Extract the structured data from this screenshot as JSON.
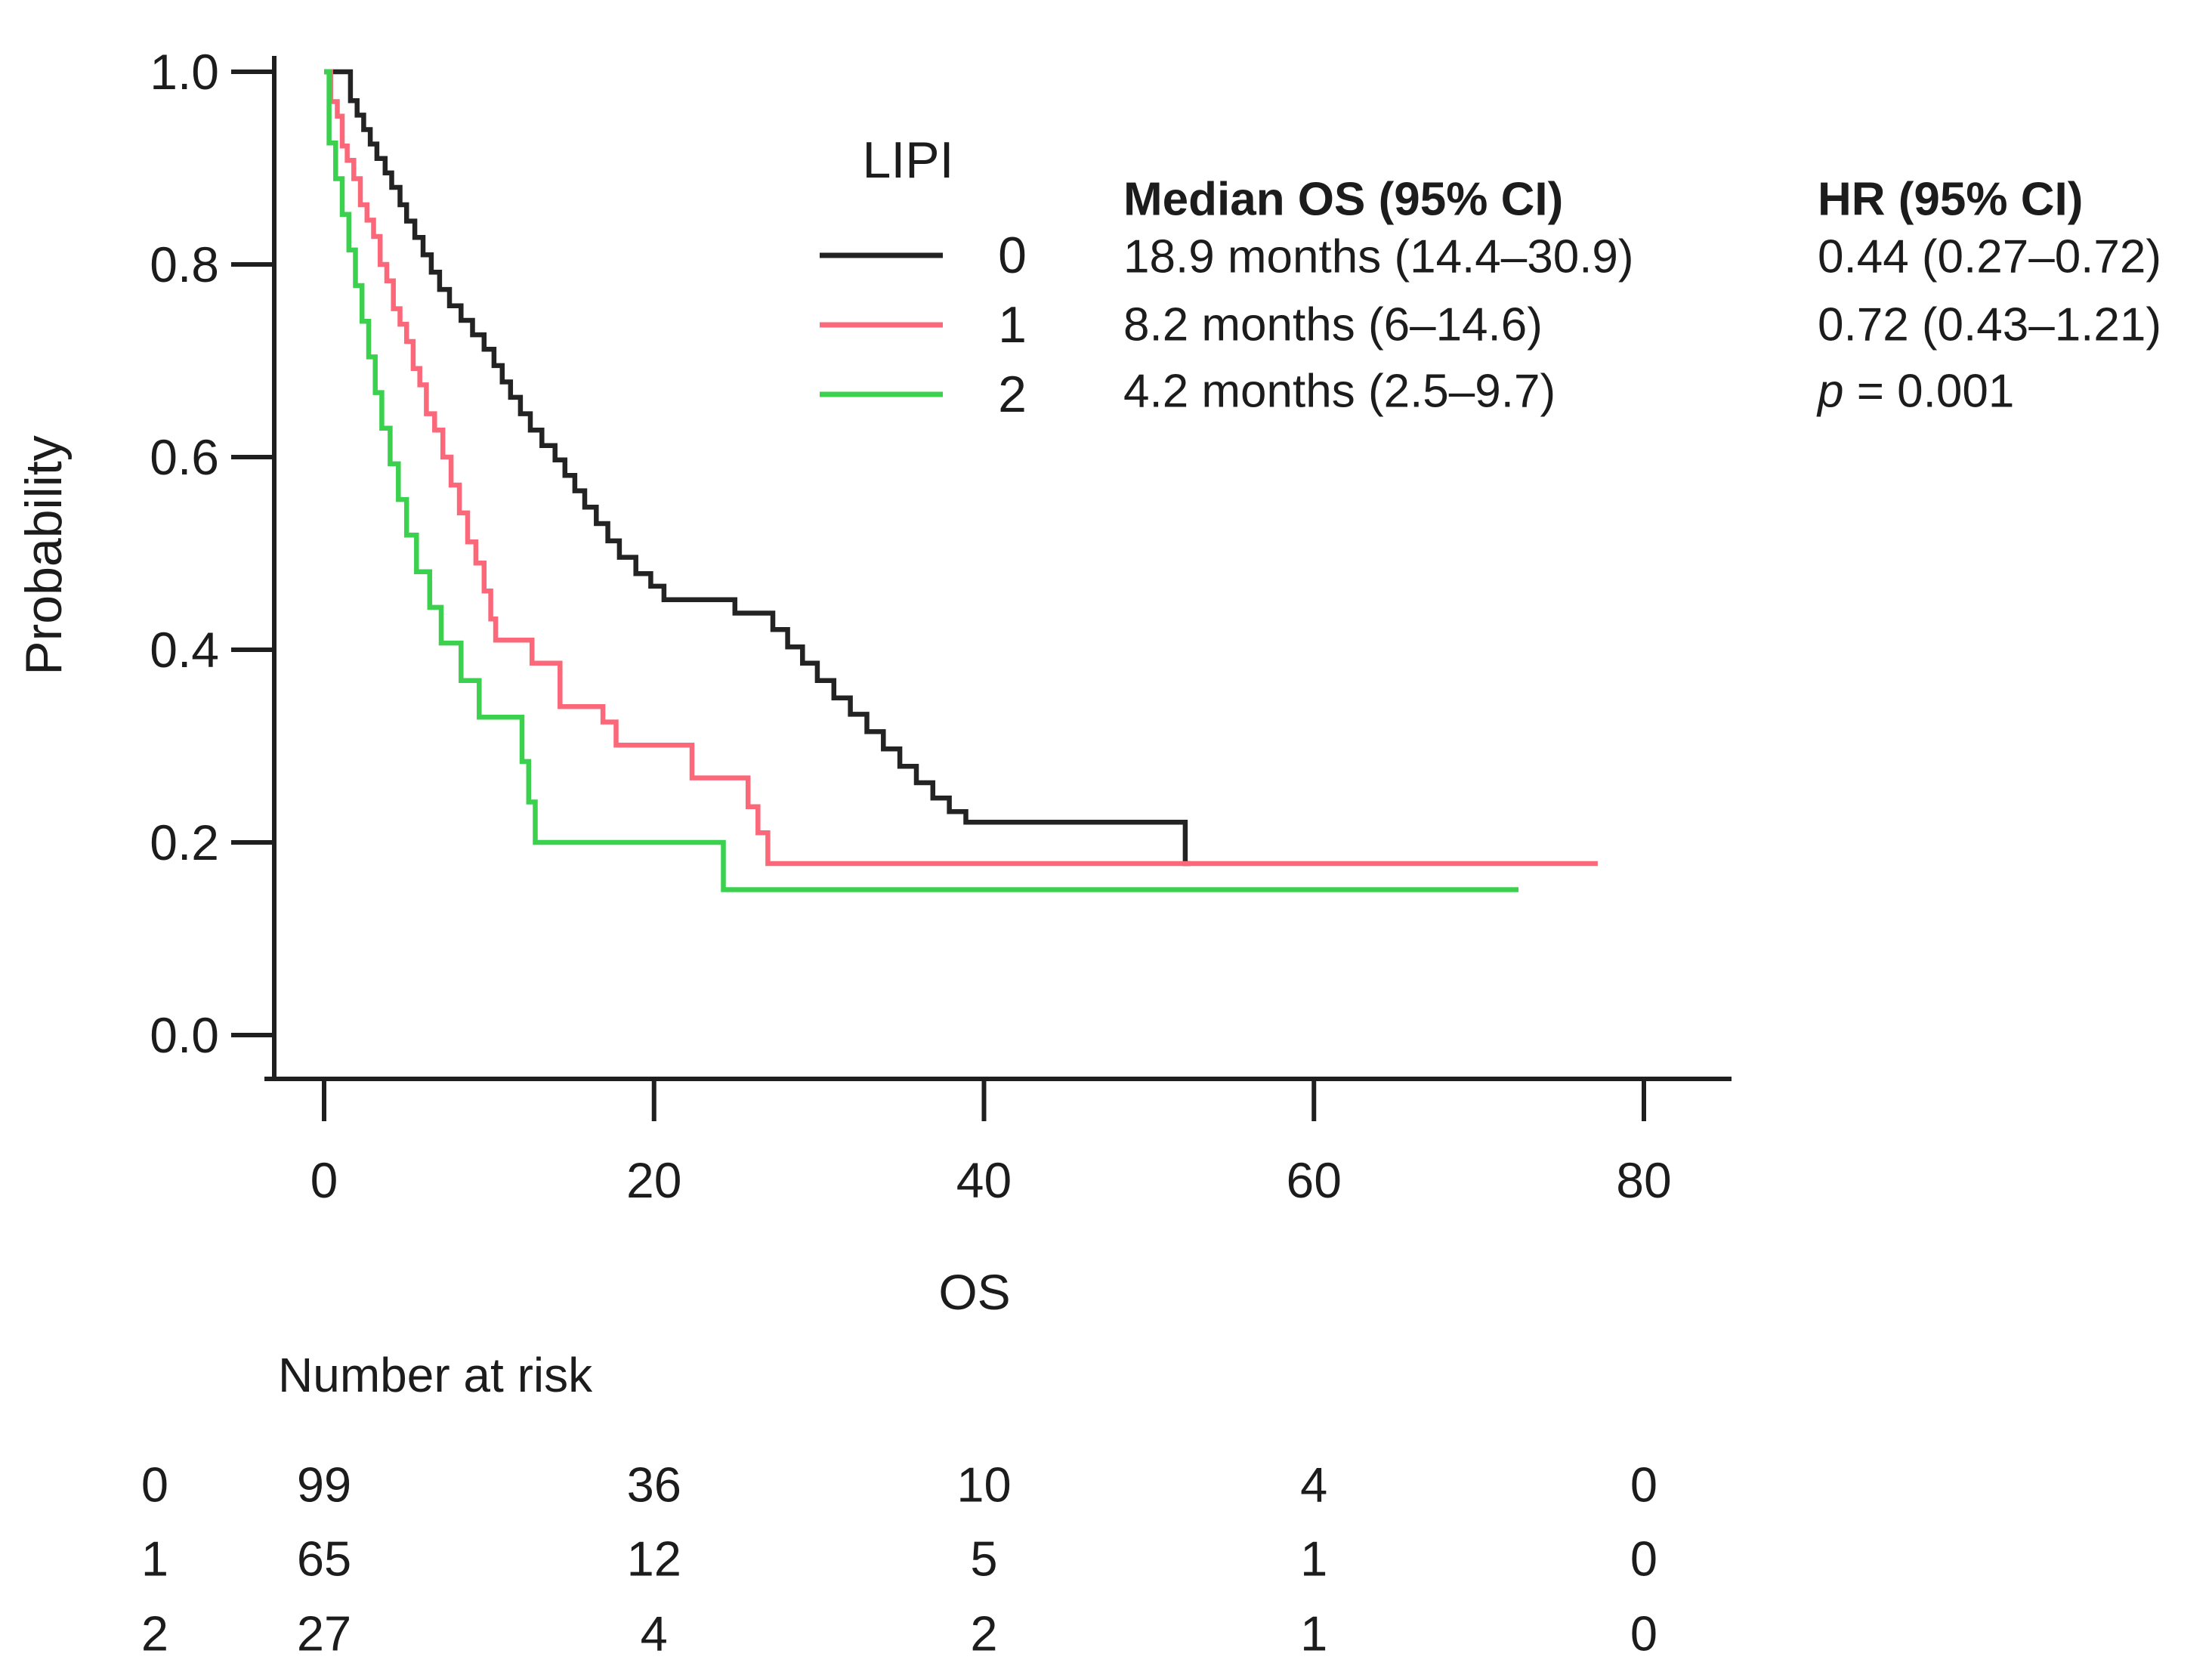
{
  "figure": {
    "y_axis_label": "Probability",
    "x_axis_label": "OS",
    "background_color": "#ffffff",
    "axis_color": "#1f1f1f"
  },
  "legend": {
    "title": "LIPI",
    "entries": [
      {
        "label": "0",
        "color": "#232323"
      },
      {
        "label": "1",
        "color": "#fb687a"
      },
      {
        "label": "2",
        "color": "#3bd14e"
      }
    ]
  },
  "stats": {
    "median_header": "Median OS (95% CI)",
    "median_rows": [
      "18.9 months (14.4–30.9)",
      "8.2 months (6–14.6)",
      "4.2 months (2.5–9.7)"
    ],
    "hr_header": "HR (95% CI)",
    "hr_rows": [
      "0.44 (0.27–0.72)",
      "0.72 (0.43–1.21)"
    ],
    "p_label": "p",
    "p_value": "= 0.001"
  },
  "risk_table": {
    "title": "Number at risk",
    "rows": [
      {
        "group": "0",
        "counts": [
          "99",
          "36",
          "10",
          "4",
          "0"
        ]
      },
      {
        "group": "1",
        "counts": [
          "65",
          "12",
          "5",
          "1",
          "0"
        ]
      },
      {
        "group": "2",
        "counts": [
          "27",
          "4",
          "2",
          "1",
          "0"
        ]
      }
    ]
  },
  "chart_data": {
    "type": "line",
    "subtype": "kaplan_meier_step",
    "title": "",
    "xlabel": "OS",
    "ylabel": "Probability",
    "xlim": [
      0,
      85
    ],
    "ylim": [
      0,
      1
    ],
    "x_ticks": [
      0,
      20,
      40,
      60,
      80
    ],
    "x_tick_labels": [
      "0",
      "20",
      "40",
      "60",
      "80"
    ],
    "y_ticks": [
      1.0,
      0.8,
      0.6,
      0.4,
      0.2,
      0.0
    ],
    "y_tick_labels": [
      "1.0",
      "0.8",
      "0.6",
      "0.4",
      "0.2",
      "0.0"
    ],
    "grid": false,
    "legend_title": "LIPI",
    "legend_position": "top-center",
    "p_value": "p = 0.001",
    "series": [
      {
        "name": "0",
        "color": "#232323",
        "median_os": "18.9 months (14.4–30.9)",
        "end_time": 52.5,
        "points": [
          [
            0,
            1.0
          ],
          [
            1.6,
            0.97
          ],
          [
            2.0,
            0.955
          ],
          [
            2.4,
            0.94
          ],
          [
            2.8,
            0.925
          ],
          [
            3.2,
            0.91
          ],
          [
            3.7,
            0.895
          ],
          [
            4.1,
            0.88
          ],
          [
            4.6,
            0.862
          ],
          [
            5.0,
            0.845
          ],
          [
            5.5,
            0.828
          ],
          [
            6.0,
            0.81
          ],
          [
            6.5,
            0.792
          ],
          [
            7.0,
            0.774
          ],
          [
            7.6,
            0.757
          ],
          [
            8.3,
            0.742
          ],
          [
            9.0,
            0.727
          ],
          [
            9.7,
            0.712
          ],
          [
            10.3,
            0.695
          ],
          [
            10.8,
            0.678
          ],
          [
            11.3,
            0.662
          ],
          [
            11.9,
            0.645
          ],
          [
            12.5,
            0.628
          ],
          [
            13.2,
            0.612
          ],
          [
            14.0,
            0.597
          ],
          [
            14.6,
            0.581
          ],
          [
            15.2,
            0.565
          ],
          [
            15.8,
            0.548
          ],
          [
            16.5,
            0.531
          ],
          [
            17.2,
            0.513
          ],
          [
            17.9,
            0.496
          ],
          [
            18.9,
            0.479
          ],
          [
            19.8,
            0.466
          ],
          [
            20.6,
            0.452
          ],
          [
            24.9,
            0.438
          ],
          [
            27.2,
            0.421
          ],
          [
            28.1,
            0.403
          ],
          [
            29.0,
            0.386
          ],
          [
            29.9,
            0.368
          ],
          [
            30.9,
            0.35
          ],
          [
            31.9,
            0.333
          ],
          [
            32.9,
            0.315
          ],
          [
            33.9,
            0.297
          ],
          [
            34.9,
            0.279
          ],
          [
            35.9,
            0.262
          ],
          [
            36.9,
            0.246
          ],
          [
            37.9,
            0.232
          ],
          [
            38.9,
            0.221
          ],
          [
            52.2,
            0.178
          ]
        ]
      },
      {
        "name": "1",
        "color": "#fb687a",
        "median_os": "8.2 months (6–14.6)",
        "end_time": 77.2,
        "points": [
          [
            0,
            1.0
          ],
          [
            0.4,
            0.969
          ],
          [
            0.8,
            0.954
          ],
          [
            1.1,
            0.923
          ],
          [
            1.4,
            0.908
          ],
          [
            1.8,
            0.889
          ],
          [
            2.2,
            0.862
          ],
          [
            2.6,
            0.846
          ],
          [
            3.0,
            0.829
          ],
          [
            3.4,
            0.8
          ],
          [
            3.8,
            0.783
          ],
          [
            4.2,
            0.754
          ],
          [
            4.6,
            0.738
          ],
          [
            5.0,
            0.72
          ],
          [
            5.4,
            0.692
          ],
          [
            5.8,
            0.675
          ],
          [
            6.2,
            0.645
          ],
          [
            6.7,
            0.628
          ],
          [
            7.2,
            0.6
          ],
          [
            7.7,
            0.571
          ],
          [
            8.2,
            0.542
          ],
          [
            8.7,
            0.512
          ],
          [
            9.2,
            0.49
          ],
          [
            9.7,
            0.461
          ],
          [
            10.1,
            0.432
          ],
          [
            10.4,
            0.41
          ],
          [
            12.6,
            0.386
          ],
          [
            14.3,
            0.341
          ],
          [
            16.9,
            0.325
          ],
          [
            17.7,
            0.301
          ],
          [
            22.3,
            0.267
          ],
          [
            25.7,
            0.237
          ],
          [
            26.3,
            0.21
          ],
          [
            26.9,
            0.178
          ]
        ]
      },
      {
        "name": "2",
        "color": "#3bd14e",
        "median_os": "4.2 months (2.5–9.7)",
        "end_time": 72.4,
        "points": [
          [
            0,
            1.0
          ],
          [
            0.3,
            0.926
          ],
          [
            0.7,
            0.889
          ],
          [
            1.1,
            0.852
          ],
          [
            1.5,
            0.815
          ],
          [
            1.9,
            0.778
          ],
          [
            2.3,
            0.741
          ],
          [
            2.7,
            0.704
          ],
          [
            3.1,
            0.667
          ],
          [
            3.5,
            0.63
          ],
          [
            4.0,
            0.593
          ],
          [
            4.5,
            0.556
          ],
          [
            5.0,
            0.519
          ],
          [
            5.6,
            0.481
          ],
          [
            6.4,
            0.444
          ],
          [
            7.1,
            0.407
          ],
          [
            8.3,
            0.368
          ],
          [
            9.4,
            0.33
          ],
          [
            12.0,
            0.284
          ],
          [
            12.4,
            0.242
          ],
          [
            12.8,
            0.2
          ],
          [
            24.2,
            0.151
          ]
        ]
      }
    ],
    "hr_rows": [
      "0.44 (0.27–0.72)",
      "0.72 (0.43–1.21)"
    ],
    "number_at_risk": {
      "times": [
        0,
        20,
        40,
        60,
        80
      ],
      "groups": [
        {
          "name": "0",
          "counts": [
            99,
            36,
            10,
            4,
            0
          ]
        },
        {
          "name": "1",
          "counts": [
            65,
            12,
            5,
            1,
            0
          ]
        },
        {
          "name": "2",
          "counts": [
            27,
            4,
            2,
            1,
            0
          ]
        }
      ]
    }
  }
}
